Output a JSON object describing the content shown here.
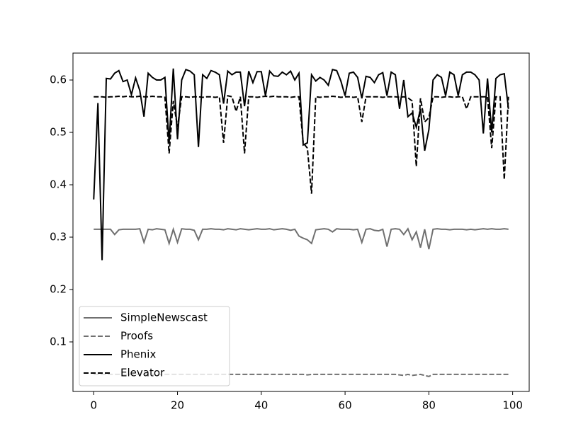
{
  "chart_data": {
    "type": "line",
    "x": [
      0,
      1,
      2,
      3,
      4,
      5,
      6,
      7,
      8,
      9,
      10,
      11,
      12,
      13,
      14,
      15,
      16,
      17,
      18,
      19,
      20,
      21,
      22,
      23,
      24,
      25,
      26,
      27,
      28,
      29,
      30,
      31,
      32,
      33,
      34,
      35,
      36,
      37,
      38,
      39,
      40,
      41,
      42,
      43,
      44,
      45,
      46,
      47,
      48,
      49,
      50,
      51,
      52,
      53,
      54,
      55,
      56,
      57,
      58,
      59,
      60,
      61,
      62,
      63,
      64,
      65,
      66,
      67,
      68,
      69,
      70,
      71,
      72,
      73,
      74,
      75,
      76,
      77,
      78,
      79,
      80,
      81,
      82,
      83,
      84,
      85,
      86,
      87,
      88,
      89,
      90,
      91,
      92,
      93,
      94,
      95,
      96,
      97,
      98,
      99
    ],
    "series": [
      {
        "name": "SimpleNewscast",
        "color": "#707070",
        "dash": "solid",
        "values": [
          0.315,
          0.315,
          0.315,
          0.315,
          0.315,
          0.305,
          0.314,
          0.315,
          0.315,
          0.315,
          0.315,
          0.316,
          0.29,
          0.315,
          0.314,
          0.316,
          0.315,
          0.314,
          0.288,
          0.315,
          0.29,
          0.316,
          0.315,
          0.315,
          0.313,
          0.295,
          0.315,
          0.315,
          0.316,
          0.315,
          0.315,
          0.314,
          0.316,
          0.315,
          0.314,
          0.316,
          0.315,
          0.314,
          0.315,
          0.316,
          0.315,
          0.315,
          0.316,
          0.314,
          0.315,
          0.316,
          0.315,
          0.313,
          0.315,
          0.302,
          0.298,
          0.295,
          0.288,
          0.314,
          0.315,
          0.316,
          0.315,
          0.31,
          0.316,
          0.315,
          0.315,
          0.315,
          0.314,
          0.315,
          0.29,
          0.315,
          0.316,
          0.313,
          0.312,
          0.315,
          0.282,
          0.315,
          0.316,
          0.315,
          0.305,
          0.316,
          0.295,
          0.31,
          0.28,
          0.315,
          0.277,
          0.315,
          0.316,
          0.315,
          0.315,
          0.314,
          0.315,
          0.315,
          0.315,
          0.314,
          0.315,
          0.314,
          0.315,
          0.316,
          0.315,
          0.316,
          0.315,
          0.315,
          0.316,
          0.315
        ]
      },
      {
        "name": "Proofs",
        "color": "#707070",
        "dash": "dashed",
        "values": [
          0.038,
          0.038,
          0.038,
          0.038,
          0.038,
          0.038,
          0.038,
          0.038,
          0.038,
          0.038,
          0.038,
          0.038,
          0.038,
          0.038,
          0.038,
          0.038,
          0.038,
          0.038,
          0.038,
          0.038,
          0.038,
          0.038,
          0.038,
          0.038,
          0.038,
          0.038,
          0.038,
          0.038,
          0.038,
          0.038,
          0.038,
          0.038,
          0.038,
          0.038,
          0.038,
          0.038,
          0.038,
          0.038,
          0.038,
          0.038,
          0.038,
          0.038,
          0.038,
          0.038,
          0.038,
          0.038,
          0.038,
          0.038,
          0.038,
          0.038,
          0.038,
          0.037,
          0.038,
          0.038,
          0.038,
          0.038,
          0.038,
          0.038,
          0.038,
          0.038,
          0.038,
          0.038,
          0.038,
          0.038,
          0.038,
          0.038,
          0.038,
          0.038,
          0.038,
          0.038,
          0.038,
          0.038,
          0.038,
          0.037,
          0.036,
          0.038,
          0.036,
          0.037,
          0.038,
          0.036,
          0.034,
          0.038,
          0.038,
          0.038,
          0.038,
          0.038,
          0.038,
          0.038,
          0.038,
          0.038,
          0.038,
          0.038,
          0.038,
          0.038,
          0.038,
          0.038,
          0.038,
          0.038,
          0.038,
          0.038
        ]
      },
      {
        "name": "Phenix",
        "color": "#000000",
        "dash": "solid",
        "values": [
          0.372,
          0.556,
          0.256,
          0.603,
          0.602,
          0.613,
          0.618,
          0.597,
          0.6,
          0.572,
          0.604,
          0.58,
          0.53,
          0.613,
          0.605,
          0.6,
          0.6,
          0.605,
          0.48,
          0.622,
          0.487,
          0.6,
          0.62,
          0.617,
          0.61,
          0.472,
          0.61,
          0.603,
          0.618,
          0.615,
          0.61,
          0.555,
          0.617,
          0.61,
          0.615,
          0.615,
          0.55,
          0.617,
          0.595,
          0.616,
          0.616,
          0.57,
          0.617,
          0.608,
          0.607,
          0.615,
          0.61,
          0.617,
          0.6,
          0.613,
          0.476,
          0.48,
          0.61,
          0.598,
          0.605,
          0.6,
          0.59,
          0.62,
          0.618,
          0.598,
          0.57,
          0.613,
          0.615,
          0.605,
          0.565,
          0.607,
          0.605,
          0.595,
          0.61,
          0.614,
          0.57,
          0.615,
          0.61,
          0.545,
          0.6,
          0.53,
          0.537,
          0.51,
          0.545,
          0.465,
          0.505,
          0.6,
          0.61,
          0.605,
          0.57,
          0.615,
          0.61,
          0.57,
          0.61,
          0.615,
          0.615,
          0.61,
          0.6,
          0.498,
          0.603,
          0.5,
          0.603,
          0.61,
          0.612,
          0.545
        ]
      },
      {
        "name": "Elevator",
        "color": "#000000",
        "dash": "dashed",
        "values": [
          0.568,
          0.568,
          0.568,
          0.567,
          0.568,
          0.568,
          0.569,
          0.568,
          0.569,
          0.568,
          0.568,
          0.569,
          0.568,
          0.568,
          0.569,
          0.568,
          0.568,
          0.567,
          0.46,
          0.56,
          0.51,
          0.568,
          0.568,
          0.567,
          0.568,
          0.568,
          0.567,
          0.568,
          0.568,
          0.567,
          0.568,
          0.48,
          0.57,
          0.568,
          0.54,
          0.568,
          0.46,
          0.568,
          0.568,
          0.567,
          0.568,
          0.569,
          0.568,
          0.569,
          0.568,
          0.568,
          0.568,
          0.567,
          0.568,
          0.568,
          0.48,
          0.47,
          0.383,
          0.568,
          0.567,
          0.568,
          0.568,
          0.569,
          0.568,
          0.567,
          0.568,
          0.568,
          0.567,
          0.568,
          0.52,
          0.568,
          0.568,
          0.568,
          0.568,
          0.567,
          0.568,
          0.568,
          0.568,
          0.567,
          0.568,
          0.566,
          0.56,
          0.435,
          0.565,
          0.52,
          0.528,
          0.568,
          0.568,
          0.567,
          0.568,
          0.568,
          0.567,
          0.568,
          0.568,
          0.545,
          0.568,
          0.568,
          0.568,
          0.568,
          0.568,
          0.47,
          0.568,
          0.568,
          0.41,
          0.568
        ]
      }
    ],
    "xlim": [
      -4.95,
      103.95
    ],
    "ylim": [
      0.0054,
      0.6514
    ],
    "xticks": [
      0,
      20,
      40,
      60,
      80,
      100
    ],
    "yticks": [
      0.1,
      0.2,
      0.3,
      0.4,
      0.5,
      0.6
    ],
    "legend": "lower left"
  }
}
